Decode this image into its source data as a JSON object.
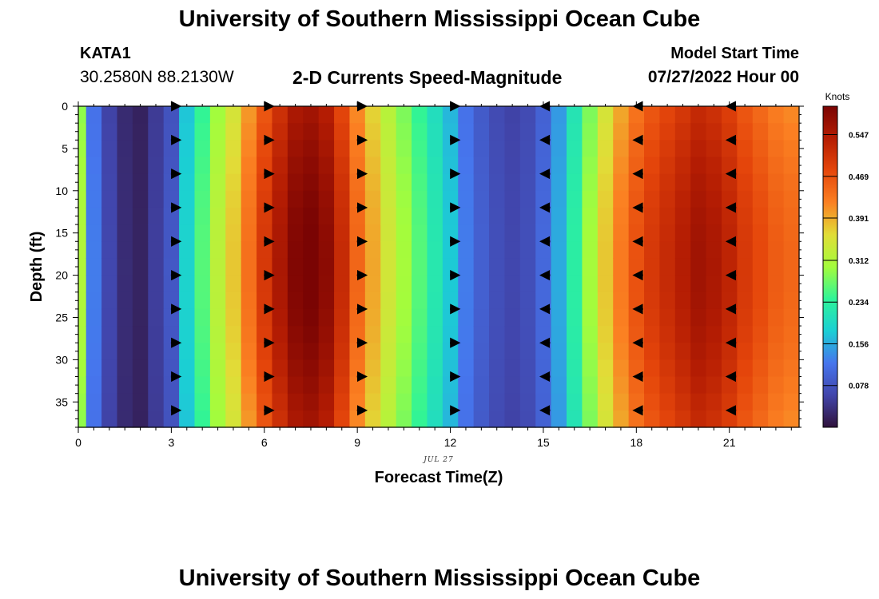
{
  "header": {
    "title": "University of Southern Mississippi Ocean Cube",
    "station": "KATA1",
    "coords": "30.2580N  88.2130W",
    "subtitle": "2-D Currents Speed-Magnitude",
    "model_start_label": "Model Start Time",
    "model_start_value": "07/27/2022 Hour 00",
    "footer_title": "University of Southern Mississippi Ocean Cube"
  },
  "chart_data": {
    "type": "heatmap",
    "title": "2-D Currents Speed-Magnitude",
    "xlabel": "Forecast Time(Z)",
    "ylabel": "Depth (ft)",
    "date_label": "JUL 27",
    "xlim": [
      0,
      23.25
    ],
    "ylim": [
      0,
      38
    ],
    "y_inverted": true,
    "x_ticks": [
      0,
      3,
      6,
      9,
      12,
      15,
      18,
      21
    ],
    "y_ticks": [
      0,
      5,
      10,
      15,
      20,
      25,
      30,
      35
    ],
    "colorbar": {
      "unit": "Knots",
      "ticks": [
        "0.078",
        "0.156",
        "0.234",
        "0.312",
        "0.391",
        "0.469",
        "0.547"
      ],
      "tick_values": [
        0.078,
        0.156,
        0.234,
        0.312,
        0.391,
        0.469,
        0.547
      ],
      "range": [
        0.0,
        0.6
      ]
    },
    "times": [
      0,
      0.5,
      1,
      1.5,
      2,
      2.5,
      3,
      3.5,
      4,
      4.5,
      5,
      5.5,
      6,
      6.5,
      7,
      7.5,
      8,
      8.5,
      9,
      9.5,
      10,
      10.5,
      11,
      11.5,
      12,
      12.5,
      13,
      13.5,
      14,
      14.5,
      15,
      15.5,
      16,
      16.5,
      17,
      17.5,
      18,
      18.5,
      19,
      19.5,
      20,
      20.5,
      21,
      21.5,
      22,
      22.5,
      23
    ],
    "speed_knots_by_time": [
      0.3,
      0.12,
      0.06,
      0.03,
      0.02,
      0.05,
      0.08,
      0.18,
      0.25,
      0.31,
      0.36,
      0.42,
      0.48,
      0.53,
      0.57,
      0.58,
      0.56,
      0.5,
      0.43,
      0.38,
      0.33,
      0.29,
      0.25,
      0.21,
      0.17,
      0.12,
      0.09,
      0.07,
      0.06,
      0.07,
      0.1,
      0.15,
      0.22,
      0.29,
      0.36,
      0.41,
      0.45,
      0.48,
      0.5,
      0.52,
      0.54,
      0.53,
      0.51,
      0.48,
      0.46,
      0.44,
      0.43
    ],
    "arrow_times": [
      3,
      6,
      9,
      12,
      15,
      18,
      21
    ],
    "arrow_depths": [
      0,
      4,
      8,
      12,
      16,
      20,
      24,
      28,
      32,
      36
    ],
    "arrow_direction": [
      "east",
      "east",
      "east",
      "east",
      "west",
      "west",
      "west"
    ]
  }
}
